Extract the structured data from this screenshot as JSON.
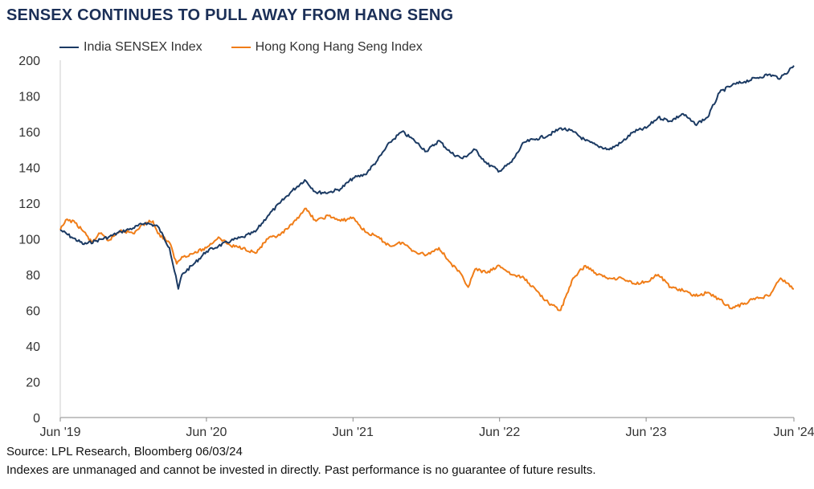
{
  "title": "SENSEX CONTINUES TO PULL AWAY FROM HANG SENG",
  "footer": {
    "source": "Source: LPL Research, Bloomberg 06/03/24",
    "disclaimer": "Indexes are unmanaged and cannot be invested in directly. Past performance is no guarantee of future results."
  },
  "chart_data": {
    "type": "line",
    "title": "SENSEX CONTINUES TO PULL AWAY FROM HANG SENG",
    "xlabel": "",
    "ylabel": "",
    "ylim": [
      0,
      200
    ],
    "yticks": [
      0,
      20,
      40,
      60,
      80,
      100,
      120,
      140,
      160,
      180,
      200
    ],
    "xlim": [
      "2019-06-03",
      "2024-06-03"
    ],
    "xticks": [
      {
        "label": "Jun '19",
        "x": "2019-06-03"
      },
      {
        "label": "Jun '20",
        "x": "2020-06-01"
      },
      {
        "label": "Jun '21",
        "x": "2021-06-01"
      },
      {
        "label": "Jun '22",
        "x": "2022-06-01"
      },
      {
        "label": "Jun '23",
        "x": "2023-06-01"
      },
      {
        "label": "Jun '24",
        "x": "2024-06-03"
      }
    ],
    "grid": false,
    "legend": "top-left",
    "colors": {
      "sensex": "#1b3a63",
      "hangseng": "#f07d18",
      "axis": "#888888",
      "text": "#333333"
    },
    "series": [
      {
        "name": "India SENSEX Index",
        "points": [
          [
            "2019-06-03",
            105
          ],
          [
            "2019-07-01",
            101
          ],
          [
            "2019-08-01",
            97
          ],
          [
            "2019-09-01",
            99
          ],
          [
            "2019-10-01",
            101
          ],
          [
            "2019-11-01",
            104
          ],
          [
            "2019-12-01",
            106
          ],
          [
            "2020-01-01",
            109
          ],
          [
            "2020-02-01",
            107
          ],
          [
            "2020-03-01",
            95
          ],
          [
            "2020-03-23",
            72
          ],
          [
            "2020-04-01",
            80
          ],
          [
            "2020-05-01",
            86
          ],
          [
            "2020-06-01",
            93
          ],
          [
            "2020-07-01",
            96
          ],
          [
            "2020-08-01",
            99
          ],
          [
            "2020-09-01",
            101
          ],
          [
            "2020-10-01",
            104
          ],
          [
            "2020-11-01",
            113
          ],
          [
            "2020-12-01",
            120
          ],
          [
            "2021-01-01",
            127
          ],
          [
            "2021-02-01",
            133
          ],
          [
            "2021-03-01",
            126
          ],
          [
            "2021-04-01",
            126
          ],
          [
            "2021-05-01",
            128
          ],
          [
            "2021-06-01",
            134
          ],
          [
            "2021-07-01",
            136
          ],
          [
            "2021-08-01",
            144
          ],
          [
            "2021-09-01",
            154
          ],
          [
            "2021-10-01",
            160
          ],
          [
            "2021-11-01",
            155
          ],
          [
            "2021-12-01",
            149
          ],
          [
            "2022-01-01",
            155
          ],
          [
            "2022-02-01",
            148
          ],
          [
            "2022-03-01",
            145
          ],
          [
            "2022-04-01",
            150
          ],
          [
            "2022-05-01",
            142
          ],
          [
            "2022-06-01",
            138
          ],
          [
            "2022-07-01",
            143
          ],
          [
            "2022-08-01",
            154
          ],
          [
            "2022-09-01",
            156
          ],
          [
            "2022-10-01",
            158
          ],
          [
            "2022-11-01",
            162
          ],
          [
            "2022-12-01",
            160
          ],
          [
            "2023-01-01",
            155
          ],
          [
            "2023-02-01",
            152
          ],
          [
            "2023-03-01",
            150
          ],
          [
            "2023-04-01",
            154
          ],
          [
            "2023-05-01",
            160
          ],
          [
            "2023-06-01",
            162
          ],
          [
            "2023-07-01",
            168
          ],
          [
            "2023-08-01",
            166
          ],
          [
            "2023-09-01",
            170
          ],
          [
            "2023-10-01",
            164
          ],
          [
            "2023-11-01",
            168
          ],
          [
            "2023-12-01",
            182
          ],
          [
            "2024-01-01",
            186
          ],
          [
            "2024-02-01",
            188
          ],
          [
            "2024-03-01",
            190
          ],
          [
            "2024-04-01",
            192
          ],
          [
            "2024-05-01",
            190
          ],
          [
            "2024-06-03",
            197
          ]
        ]
      },
      {
        "name": "Hong Kong Hang Seng Index",
        "points": [
          [
            "2019-06-03",
            105
          ],
          [
            "2019-06-20",
            111
          ],
          [
            "2019-07-10",
            109
          ],
          [
            "2019-08-01",
            104
          ],
          [
            "2019-08-20",
            98
          ],
          [
            "2019-09-10",
            103
          ],
          [
            "2019-10-01",
            99
          ],
          [
            "2019-11-01",
            105
          ],
          [
            "2019-12-01",
            103
          ],
          [
            "2020-01-01",
            109
          ],
          [
            "2020-01-20",
            110
          ],
          [
            "2020-02-01",
            103
          ],
          [
            "2020-03-01",
            98
          ],
          [
            "2020-03-19",
            86
          ],
          [
            "2020-04-01",
            90
          ],
          [
            "2020-05-01",
            92
          ],
          [
            "2020-06-01",
            95
          ],
          [
            "2020-07-01",
            101
          ],
          [
            "2020-08-01",
            96
          ],
          [
            "2020-09-01",
            95
          ],
          [
            "2020-10-01",
            92
          ],
          [
            "2020-11-01",
            100
          ],
          [
            "2020-12-01",
            102
          ],
          [
            "2021-01-01",
            108
          ],
          [
            "2021-02-01",
            117
          ],
          [
            "2021-03-01",
            110
          ],
          [
            "2021-04-01",
            113
          ],
          [
            "2021-05-01",
            110
          ],
          [
            "2021-06-01",
            112
          ],
          [
            "2021-07-01",
            104
          ],
          [
            "2021-08-01",
            101
          ],
          [
            "2021-09-01",
            96
          ],
          [
            "2021-10-01",
            98
          ],
          [
            "2021-11-01",
            93
          ],
          [
            "2021-12-01",
            91
          ],
          [
            "2022-01-01",
            95
          ],
          [
            "2022-02-01",
            86
          ],
          [
            "2022-03-01",
            79
          ],
          [
            "2022-03-15",
            73
          ],
          [
            "2022-04-01",
            83
          ],
          [
            "2022-05-01",
            81
          ],
          [
            "2022-06-01",
            85
          ],
          [
            "2022-07-01",
            80
          ],
          [
            "2022-08-01",
            78
          ],
          [
            "2022-09-01",
            71
          ],
          [
            "2022-10-01",
            64
          ],
          [
            "2022-10-31",
            60
          ],
          [
            "2022-12-01",
            78
          ],
          [
            "2023-01-01",
            85
          ],
          [
            "2023-02-01",
            80
          ],
          [
            "2023-03-01",
            78
          ],
          [
            "2023-04-01",
            78
          ],
          [
            "2023-05-01",
            75
          ],
          [
            "2023-06-01",
            76
          ],
          [
            "2023-07-01",
            80
          ],
          [
            "2023-08-01",
            73
          ],
          [
            "2023-09-01",
            71
          ],
          [
            "2023-10-01",
            68
          ],
          [
            "2023-11-01",
            70
          ],
          [
            "2023-12-01",
            66
          ],
          [
            "2024-01-01",
            61
          ],
          [
            "2024-02-01",
            64
          ],
          [
            "2024-03-01",
            67
          ],
          [
            "2024-04-01",
            68
          ],
          [
            "2024-05-01",
            78
          ],
          [
            "2024-06-03",
            72
          ]
        ]
      }
    ]
  }
}
